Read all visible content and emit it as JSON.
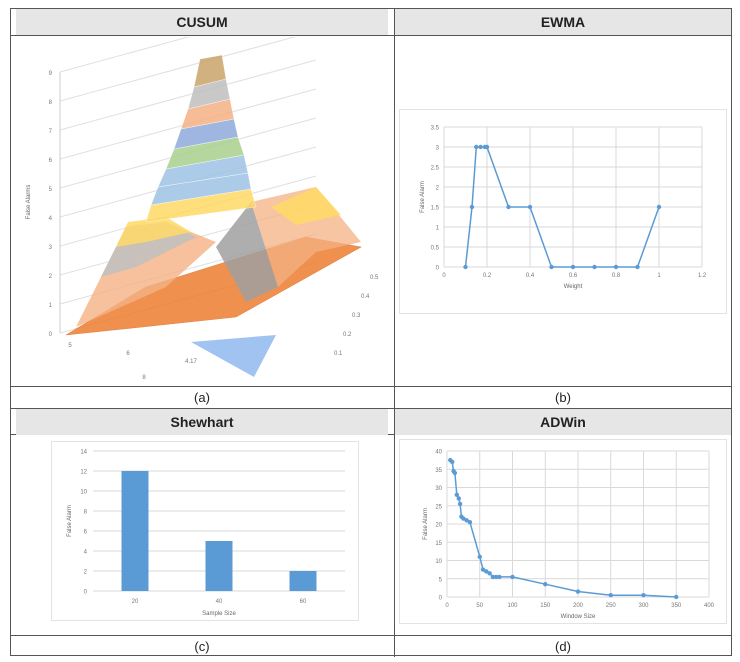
{
  "panels": [
    {
      "title": "CUSUM",
      "caption": "(a)"
    },
    {
      "title": "EWMA",
      "caption": "(b)"
    },
    {
      "title": "Shewhart",
      "caption": "(c)"
    },
    {
      "title": "ADWin",
      "caption": "(d)"
    }
  ],
  "colors": {
    "series": "#5b9bd5",
    "grid": "#d9d9d9"
  },
  "chart_data": [
    {
      "type": "surface",
      "title": "CUSUM",
      "ylabel": "False Alarms",
      "zlim": [
        0,
        9
      ],
      "z_ticks": [
        "0",
        "1",
        "2",
        "3",
        "4",
        "5",
        "6",
        "7",
        "8",
        "9"
      ],
      "depth_ticks": [
        "0.1",
        "0.2",
        "0.3",
        "0.4",
        "0.5"
      ],
      "front_ticks": [
        "5",
        "6",
        "4.17",
        "8"
      ],
      "band_colors": [
        "#ed7d31",
        "#f4b183",
        "#bfbfbf",
        "#ffd966",
        "#9dc3e6",
        "#a9d18e",
        "#8faadc",
        "#f4b183",
        "#c9a46b"
      ]
    },
    {
      "type": "line",
      "title": "EWMA",
      "xlabel": "Weight",
      "ylabel": "False Alarm",
      "xlim": [
        0,
        1.2
      ],
      "ylim": [
        0,
        3.5
      ],
      "x_ticks": [
        "0",
        "0.2",
        "0.4",
        "0.6",
        "0.8",
        "1",
        "1.2"
      ],
      "y_ticks": [
        "0",
        "0.5",
        "1",
        "1.5",
        "2",
        "2.5",
        "3",
        "3.5"
      ],
      "x": [
        0.1,
        0.13,
        0.15,
        0.17,
        0.19,
        0.2,
        0.3,
        0.4,
        0.5,
        0.6,
        0.7,
        0.8,
        0.9,
        1.0
      ],
      "y": [
        0,
        1.5,
        3,
        3,
        3,
        3,
        1.5,
        1.5,
        0,
        0,
        0,
        0,
        0,
        1.5
      ]
    },
    {
      "type": "bar",
      "title": "Shewhart",
      "xlabel": "Sample Size",
      "ylabel": "False Alarm",
      "categories": [
        "20",
        "40",
        "60"
      ],
      "values": [
        12,
        5,
        2
      ],
      "ylim": [
        0,
        14
      ],
      "y_ticks": [
        "0",
        "2",
        "4",
        "6",
        "8",
        "10",
        "12",
        "14"
      ]
    },
    {
      "type": "line",
      "title": "ADWin",
      "xlabel": "Window Size",
      "ylabel": "False Alarm",
      "xlim": [
        0,
        400
      ],
      "ylim": [
        0,
        40
      ],
      "x_ticks": [
        "0",
        "50",
        "100",
        "150",
        "200",
        "250",
        "300",
        "350",
        "400"
      ],
      "y_ticks": [
        "0",
        "5",
        "10",
        "15",
        "20",
        "25",
        "30",
        "35",
        "40"
      ],
      "x": [
        5,
        8,
        10,
        12,
        15,
        18,
        20,
        22,
        25,
        30,
        35,
        50,
        55,
        60,
        65,
        70,
        75,
        80,
        100,
        150,
        200,
        250,
        300,
        350
      ],
      "y": [
        37.5,
        37,
        34.5,
        34,
        28,
        27,
        25.5,
        22,
        21.5,
        21,
        20.5,
        11,
        7.5,
        7,
        6.5,
        5.5,
        5.5,
        5.5,
        5.5,
        3.5,
        1.5,
        0.5,
        0.5,
        0
      ]
    }
  ]
}
